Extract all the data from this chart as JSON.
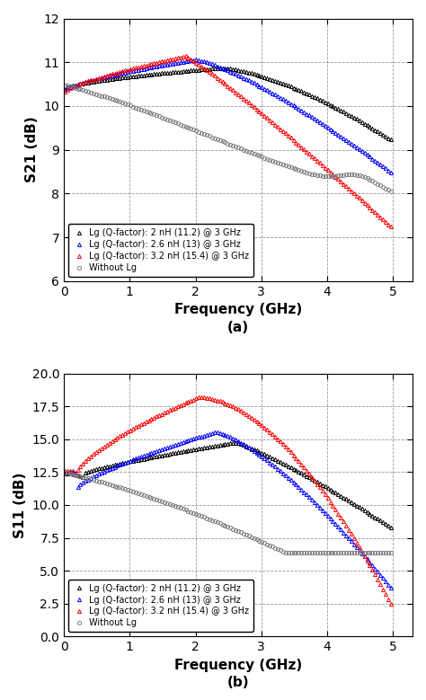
{
  "fig_width": 4.74,
  "fig_height": 7.79,
  "dpi": 100,
  "plot_a": {
    "ylabel": "S21 (dB)",
    "xlabel": "Frequency (GHz)",
    "label": "(a)",
    "xlim": [
      0,
      5.3
    ],
    "ylim": [
      6,
      12
    ],
    "yticks": [
      6,
      7,
      8,
      9,
      10,
      11,
      12
    ],
    "xticks": [
      0,
      1,
      2,
      3,
      4,
      5
    ]
  },
  "plot_b": {
    "ylabel": "S11 (dB)",
    "xlabel": "Frequency (GHz)",
    "label": "(b)",
    "xlim": [
      0,
      5.3
    ],
    "ylim": [
      0.0,
      20.0
    ],
    "yticks": [
      0.0,
      2.5,
      5.0,
      7.5,
      10.0,
      12.5,
      15.0,
      17.5,
      20.0
    ],
    "xticks": [
      0,
      1,
      2,
      3,
      4,
      5
    ]
  },
  "legend_labels": [
    "Lg (Q-factor): 2 nH (11.2) @ 3 GHz",
    "Lg (Q-factor): 2.6 nH (13) @ 3 GHz",
    "Lg (Q-factor): 3.2 nH (15.4) @ 3 GHz",
    "Without Lg"
  ],
  "colors": [
    "#000000",
    "#0000ff",
    "#ff0000",
    "#808080"
  ],
  "markers": [
    "^",
    "^",
    "^",
    "o"
  ]
}
